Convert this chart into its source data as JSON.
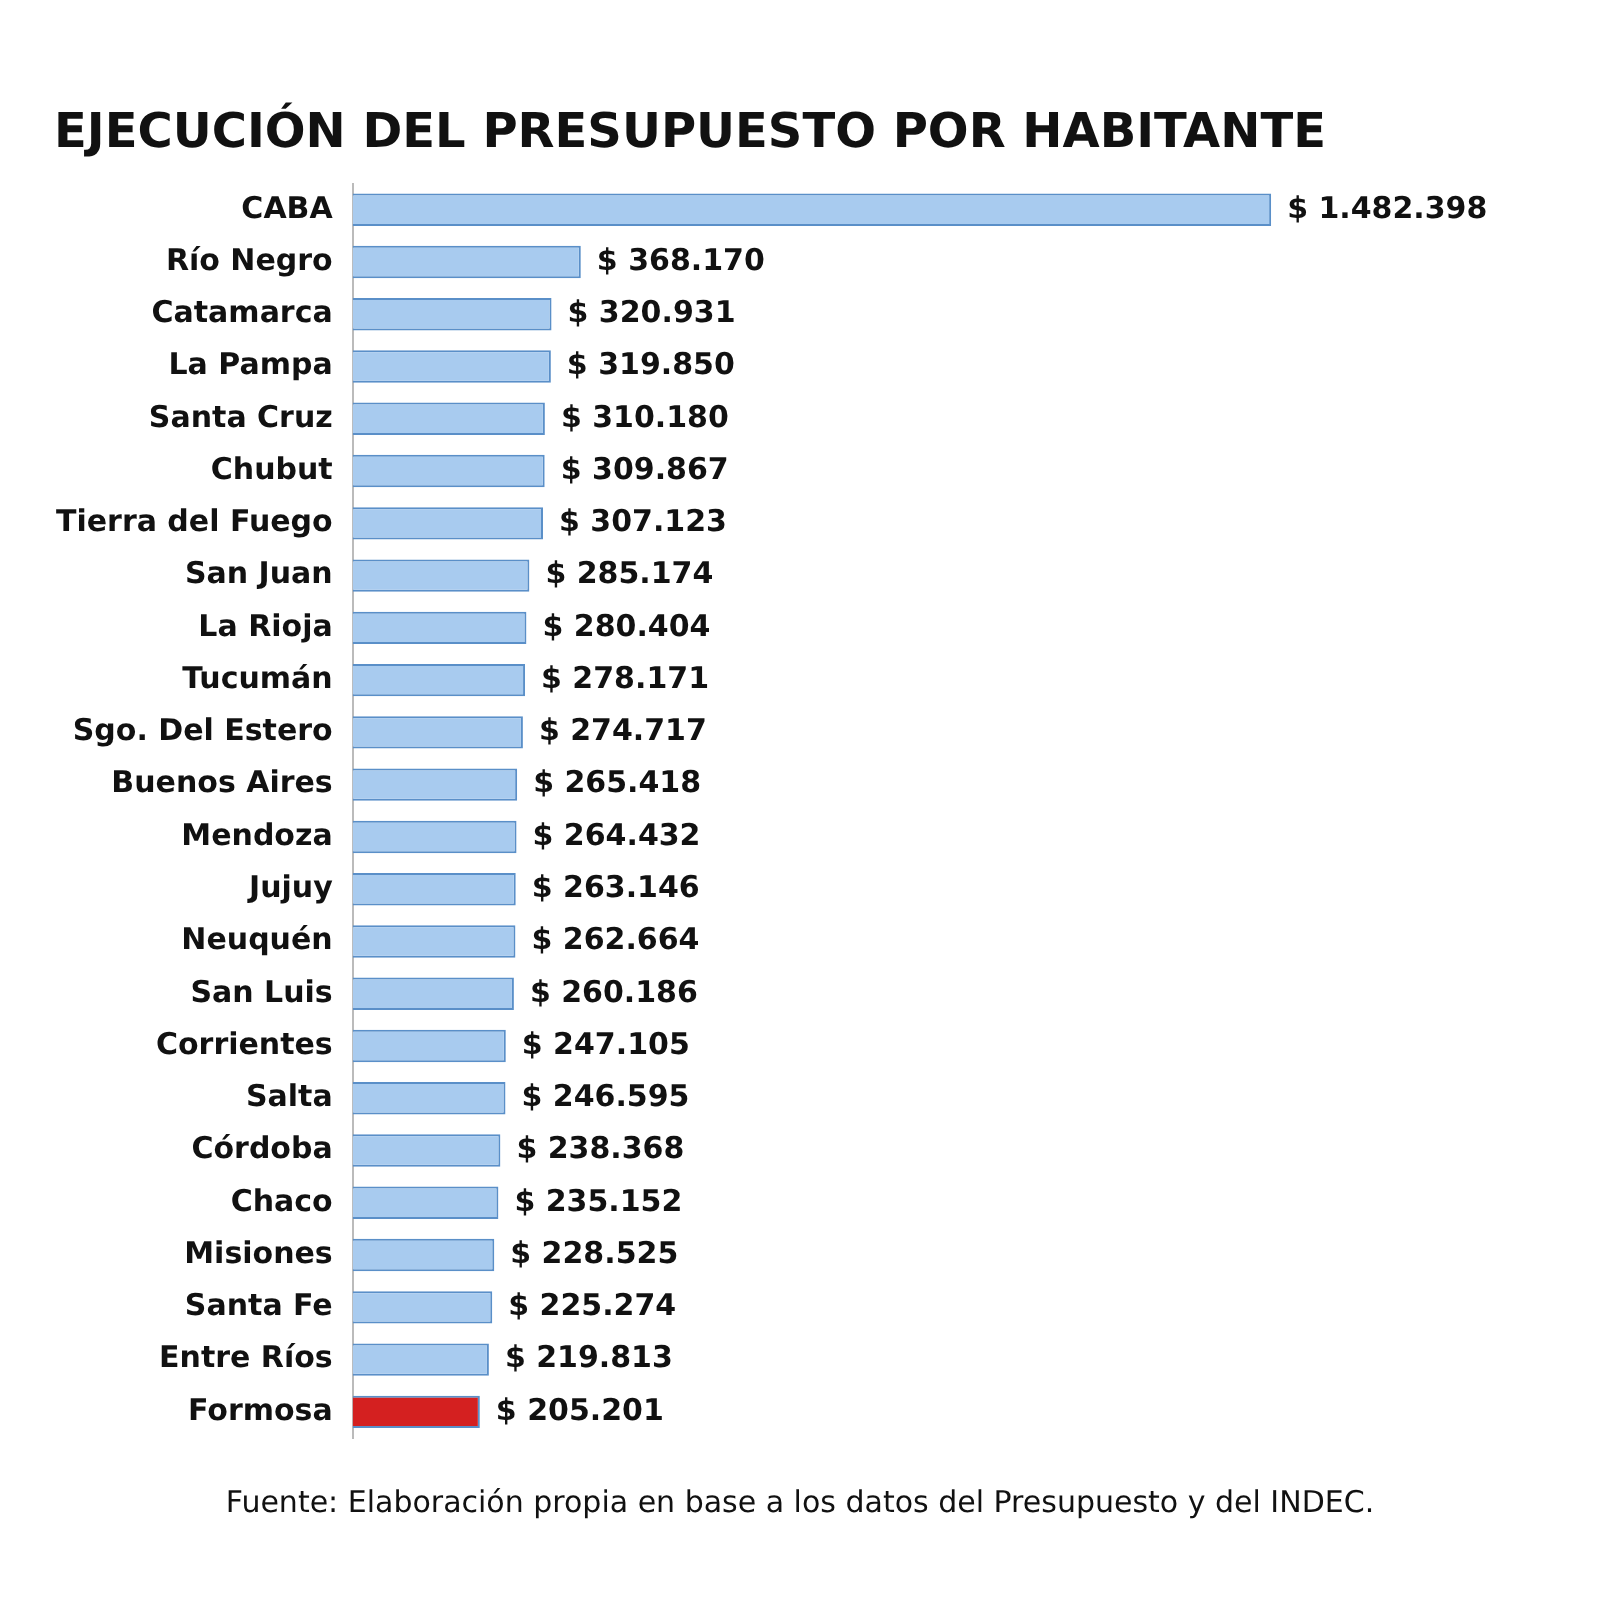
{
  "chart_data": {
    "type": "bar",
    "orientation": "horizontal",
    "title": "EJECUCIÓN DEL PRESUPUESTO POR HABITANTE",
    "categories": [
      "CABA",
      "Río Negro",
      "Catamarca",
      "La Pampa",
      "Santa Cruz",
      "Chubut",
      "Tierra del Fuego",
      "San Juan",
      "La Rioja",
      "Tucumán",
      "Sgo. Del Estero",
      "Buenos Aires",
      "Mendoza",
      "Jujuy",
      "Neuquén",
      "San Luis",
      "Corrientes",
      "Salta",
      "Córdoba",
      "Chaco",
      "Misiones",
      "Santa Fe",
      "Entre Ríos",
      "Formosa"
    ],
    "values": [
      1482398,
      368170,
      320931,
      319850,
      310180,
      309867,
      307123,
      285174,
      280404,
      278171,
      274717,
      265418,
      264432,
      263146,
      262664,
      260186,
      247105,
      246595,
      238368,
      235152,
      228525,
      225274,
      219813,
      205201
    ],
    "colors": [
      "#a8cbef",
      "#a8cbef",
      "#a8cbef",
      "#a8cbef",
      "#a8cbef",
      "#a8cbef",
      "#a8cbef",
      "#a8cbef",
      "#a8cbef",
      "#a8cbef",
      "#a8cbef",
      "#a8cbef",
      "#a8cbef",
      "#a8cbef",
      "#a8cbef",
      "#a8cbef",
      "#a8cbef",
      "#a8cbef",
      "#a8cbef",
      "#a8cbef",
      "#a8cbef",
      "#a8cbef",
      "#a8cbef",
      "#d42020"
    ],
    "value_labels": [
      "$ 1.482.398",
      "$ 368.170",
      "$ 320.931",
      "$ 319.850",
      "$ 310.180",
      "$ 309.867",
      "$ 307.123",
      "$ 285.174",
      "$ 280.404",
      "$ 278.171",
      "$ 274.717",
      "$ 265.418",
      "$ 264.432",
      "$ 263.146",
      "$ 262.664",
      "$ 260.186",
      "$ 247.105",
      "$ 246.595",
      "$ 238.368",
      "$ 235.152",
      "$ 228.525",
      "$ 225.274",
      "$ 219.813",
      "$ 205.201"
    ],
    "annotations": [
      "Fuente: Elaboración propia en base a los datos del Presupuesto y del INDEC."
    ],
    "legend": false
  }
}
